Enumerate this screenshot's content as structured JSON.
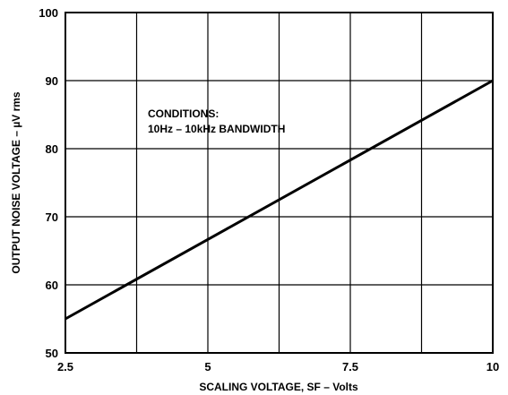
{
  "chart_data": {
    "type": "line",
    "xlabel": "SCALING VOLTAGE, SF – Volts",
    "ylabel": "OUTPUT NOISE VOLTAGE – µV rms",
    "xlim": [
      2.5,
      10
    ],
    "ylim": [
      50,
      100
    ],
    "x_ticks": [
      2.5,
      5,
      7.5,
      10
    ],
    "x_tick_labels": [
      "2.5",
      "5",
      "7.5",
      "10"
    ],
    "y_ticks": [
      50,
      60,
      70,
      80,
      90,
      100
    ],
    "y_tick_labels": [
      "50",
      "60",
      "70",
      "80",
      "90",
      "100"
    ],
    "x_grid": [
      2.5,
      3.75,
      5,
      6.25,
      7.5,
      8.75,
      10
    ],
    "grid": true,
    "annotations": [
      "CONDITIONS:",
      "10Hz – 10kHz BANDWIDTH"
    ],
    "series": [
      {
        "x": [
          2.5,
          10
        ],
        "y": [
          55,
          90
        ]
      }
    ]
  }
}
